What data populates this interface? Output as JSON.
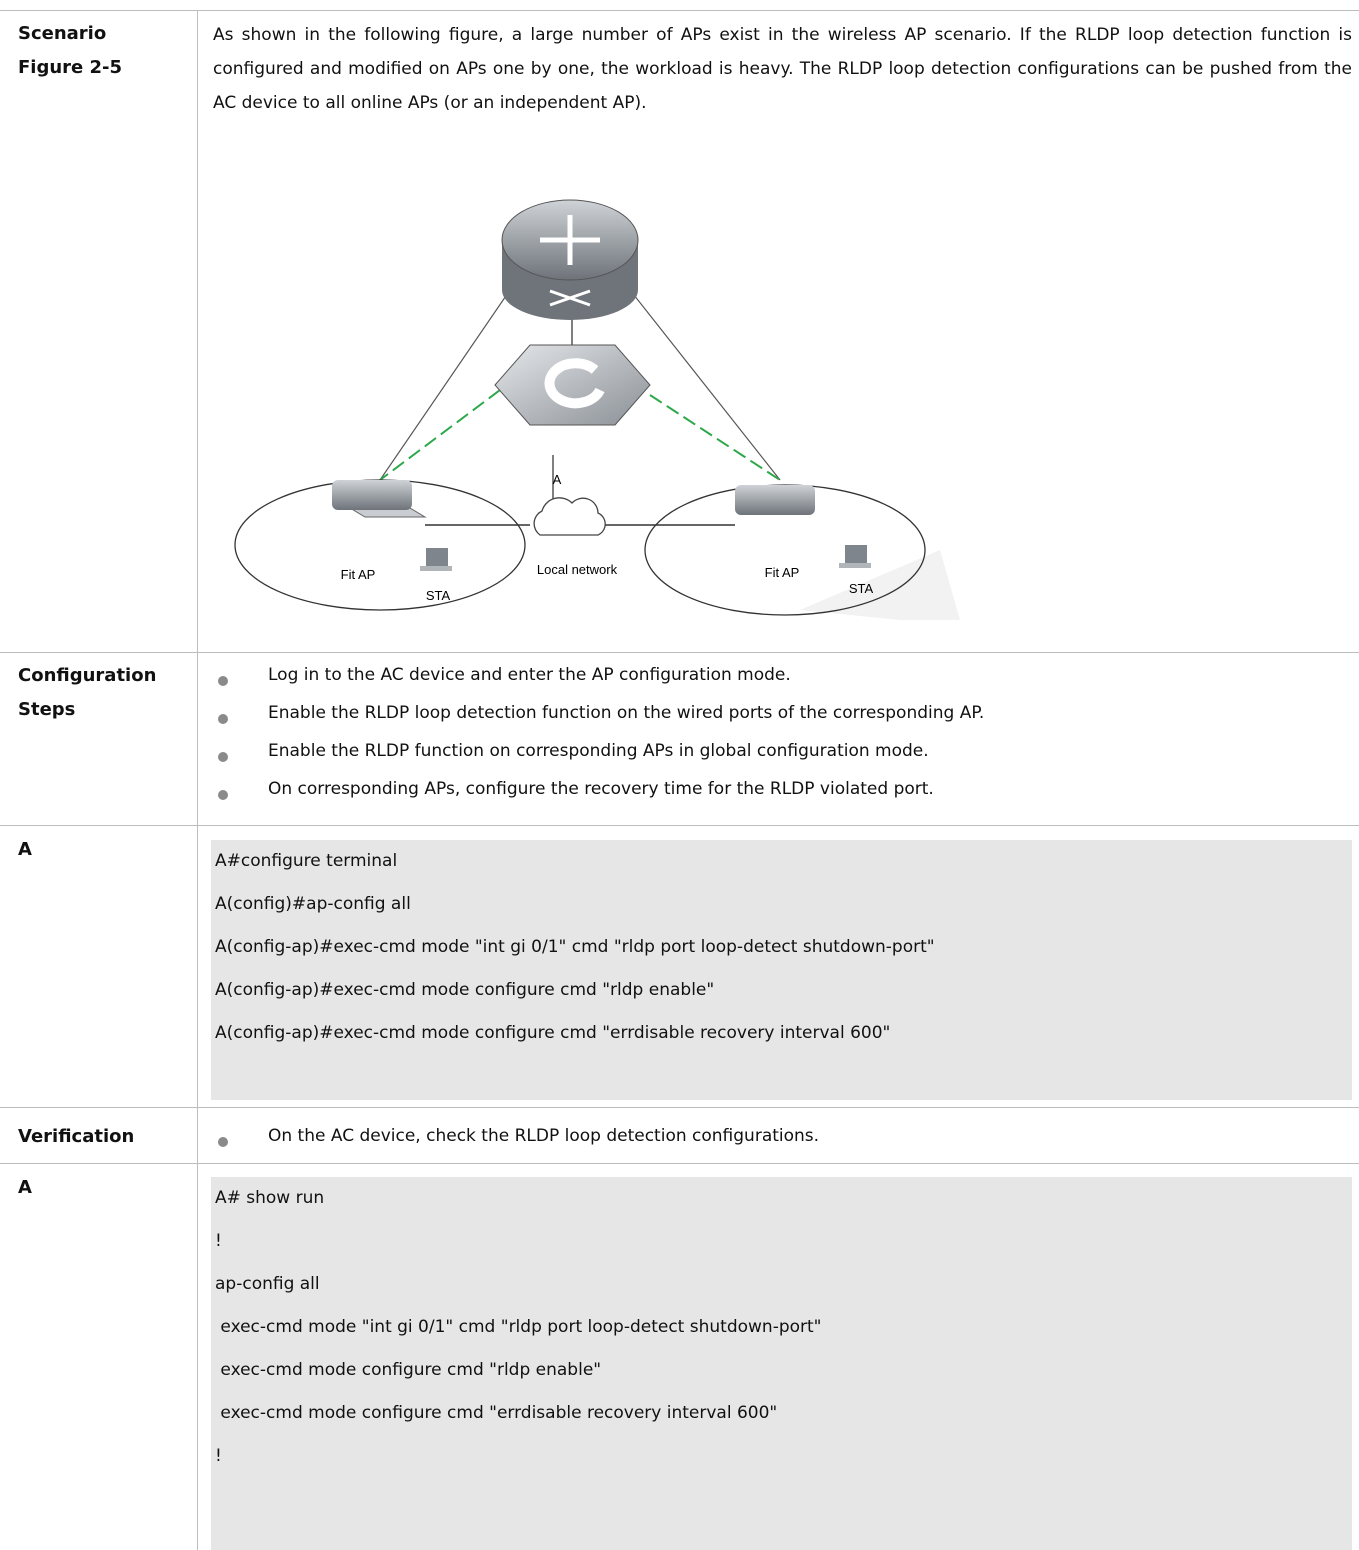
{
  "scenario": {
    "label": "Scenario",
    "figure_label": "Figure 2-5",
    "text": "As shown in the following figure, a large number of APs exist in the wireless AP scenario. If the RLDP loop detection function is configured and modified on APs one by one, the workload is heavy. The RLDP loop detection configurations can be pushed from the AC device to all online APs (or an independent AP).",
    "diagram": {
      "device_label": "A",
      "left_ap": "Fit AP",
      "left_sta": "STA",
      "network": "Local network",
      "right_ap": "Fit AP",
      "right_sta": "STA"
    }
  },
  "configuration_steps": {
    "label": "Configuration Steps",
    "items": [
      "Log in to the AC device and enter the AP configuration mode.",
      "Enable the RLDP loop detection function on the wired ports of the corresponding AP.",
      "Enable the RLDP function on corresponding APs in global configuration mode.",
      "On corresponding APs, configure the recovery time for the RLDP violated port."
    ]
  },
  "config_example": {
    "label": "A",
    "lines": [
      "A#configure terminal",
      "A(config)#ap-config all",
      "A(config-ap)#exec-cmd mode \"int gi 0/1\" cmd \"rldp port loop-detect shutdown-port\"",
      "A(config-ap)#exec-cmd mode configure cmd \"rldp enable\"",
      "A(config-ap)#exec-cmd mode configure cmd \"errdisable recovery interval 600\""
    ]
  },
  "verification": {
    "label": "Verification",
    "items": [
      "On the AC device, check the RLDP loop detection configurations."
    ]
  },
  "verification_example": {
    "label": "A",
    "lines": [
      "A# show run",
      "!",
      "ap-config all",
      " exec-cmd mode \"int gi 0/1\" cmd \"rldp port loop-detect shutdown-port\"",
      " exec-cmd mode configure cmd \"rldp enable\"",
      " exec-cmd mode configure cmd \"errdisable recovery interval 600\"",
      "!"
    ]
  }
}
